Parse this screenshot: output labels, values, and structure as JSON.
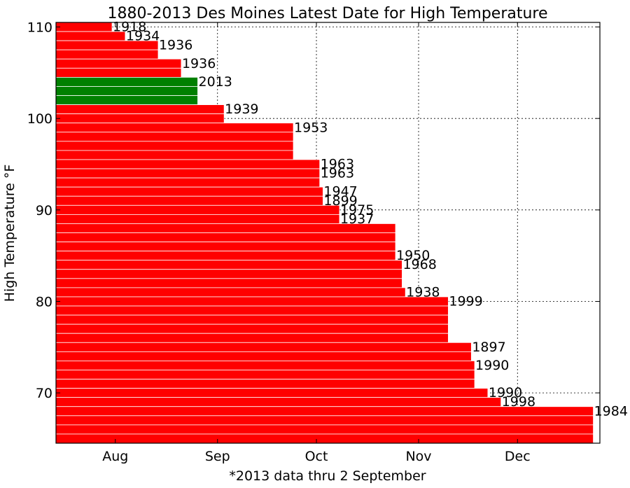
{
  "chart_data": {
    "type": "bar",
    "orientation": "horizontal",
    "title": "1880-2013 Des Moines Latest Date for High Temperature",
    "xlabel": "*2013 data thru 2 September",
    "ylabel": "High Temperature °F",
    "xlim_day_of_year": [
      195,
      360
    ],
    "ylim": [
      64.5,
      110.5
    ],
    "x_ticks": [
      {
        "label": "Aug",
        "day": 213
      },
      {
        "label": "Sep",
        "day": 244
      },
      {
        "label": "Oct",
        "day": 274
      },
      {
        "label": "Nov",
        "day": 305
      },
      {
        "label": "Dec",
        "day": 335
      }
    ],
    "y_ticks": [
      70,
      80,
      90,
      100,
      110
    ],
    "grid": true,
    "colors": {
      "record": "#ff0000",
      "current_year": "#008000",
      "bar_edge": "#ffffff"
    },
    "temperatures": [
      110,
      109,
      108,
      107,
      106,
      105,
      104,
      103,
      102,
      101,
      100,
      99,
      98,
      97,
      96,
      95,
      94,
      93,
      92,
      91,
      90,
      89,
      88,
      87,
      86,
      85,
      84,
      83,
      82,
      81,
      80,
      79,
      78,
      77,
      76,
      75,
      74,
      73,
      72,
      71,
      70,
      69,
      68,
      67,
      66,
      65
    ],
    "latest_day_of_year": [
      212,
      216,
      226,
      226,
      233,
      233,
      238,
      238,
      238,
      246,
      246,
      267,
      267,
      267,
      267,
      275,
      275,
      275,
      276,
      276,
      281,
      281,
      298,
      298,
      298,
      298,
      300,
      300,
      300,
      301,
      314,
      314,
      314,
      314,
      314,
      321,
      321,
      322,
      322,
      322,
      326,
      330,
      358,
      358,
      358,
      358
    ],
    "highlight_temperatures": [
      104,
      103,
      102
    ],
    "bar_labels": [
      {
        "temp": 110,
        "text": "1918"
      },
      {
        "temp": 109,
        "text": "1934"
      },
      {
        "temp": 108,
        "text": "1936"
      },
      {
        "temp": 106,
        "text": "1936"
      },
      {
        "temp": 104,
        "text": "2013"
      },
      {
        "temp": 101,
        "text": "1939"
      },
      {
        "temp": 99,
        "text": "1953"
      },
      {
        "temp": 95,
        "text": "1963"
      },
      {
        "temp": 94,
        "text": "1963"
      },
      {
        "temp": 92,
        "text": "1947"
      },
      {
        "temp": 91,
        "text": "1899"
      },
      {
        "temp": 90,
        "text": "1975"
      },
      {
        "temp": 89,
        "text": "1937"
      },
      {
        "temp": 85,
        "text": "1950"
      },
      {
        "temp": 84,
        "text": "1968"
      },
      {
        "temp": 81,
        "text": "1938"
      },
      {
        "temp": 80,
        "text": "1999"
      },
      {
        "temp": 75,
        "text": "1897"
      },
      {
        "temp": 73,
        "text": "1990"
      },
      {
        "temp": 70,
        "text": "1990"
      },
      {
        "temp": 69,
        "text": "1998"
      },
      {
        "temp": 68,
        "text": "1984"
      }
    ]
  }
}
